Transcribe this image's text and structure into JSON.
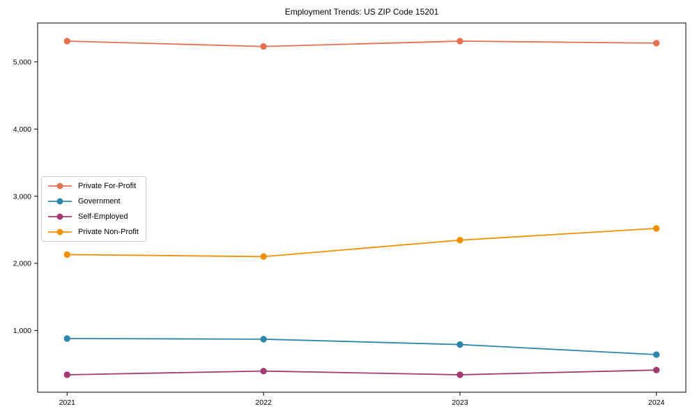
{
  "chart": {
    "title": "Employment Trends: US ZIP Code 15201"
  },
  "chart_data": {
    "type": "line",
    "title": "Employment Trends: US ZIP Code 15201",
    "xlabel": "",
    "ylabel": "",
    "x": [
      2021,
      2022,
      2023,
      2024
    ],
    "x_tick_labels": [
      "2021",
      "2022",
      "2023",
      "2024"
    ],
    "series": [
      {
        "name": "Private For-Profit",
        "color": "#E76F51",
        "values": [
          5310,
          5230,
          5310,
          5280
        ]
      },
      {
        "name": "Government",
        "color": "#2E86AB",
        "values": [
          880,
          870,
          790,
          640
        ]
      },
      {
        "name": "Self-Employed",
        "color": "#A23B72",
        "values": [
          340,
          395,
          340,
          410
        ]
      },
      {
        "name": "Private Non-Profit",
        "color": "#F18F01",
        "values": [
          2130,
          2100,
          2345,
          2520
        ]
      }
    ],
    "y_ticks": [
      1000,
      2000,
      3000,
      4000,
      5000
    ],
    "y_tick_labels": [
      "1,000",
      "2,000",
      "3,000",
      "4,000",
      "5,000"
    ],
    "xlim": [
      2020.85,
      2024.15
    ],
    "ylim": [
      80,
      5580
    ],
    "grid": false,
    "legend_position": "center-left",
    "marker": "circle",
    "axis_color": "#000000"
  }
}
